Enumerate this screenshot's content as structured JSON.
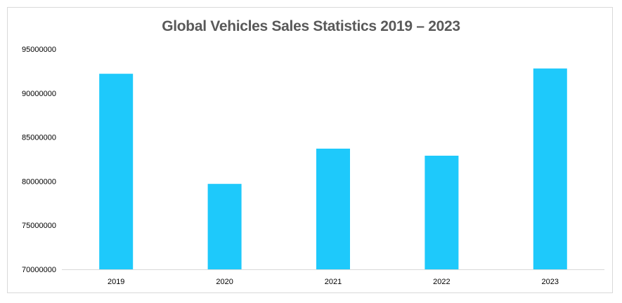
{
  "chart_data": {
    "type": "bar",
    "title": "Global Vehicles Sales Statistics 2019 – 2023",
    "xlabel": "",
    "ylabel": "",
    "categories": [
      "2019",
      "2020",
      "2021",
      "2022",
      "2023"
    ],
    "values": [
      92200000,
      79700000,
      83700000,
      82900000,
      92800000
    ],
    "ylim": [
      70000000,
      95000000
    ],
    "yticks": [
      "70000000",
      "75000000",
      "80000000",
      "85000000",
      "90000000",
      "95000000"
    ],
    "grid": false,
    "legend": "none",
    "bar_color": "#1ec9fb"
  }
}
